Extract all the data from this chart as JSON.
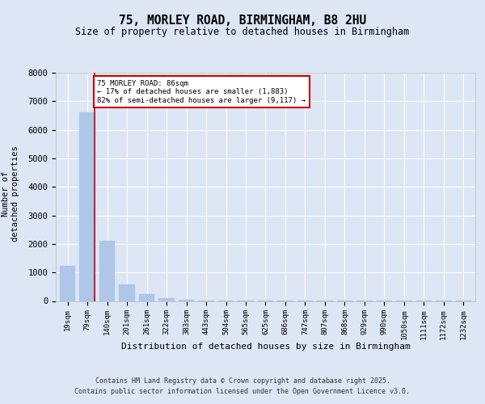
{
  "title": "75, MORLEY ROAD, BIRMINGHAM, B8 2HU",
  "subtitle": "Size of property relative to detached houses in Birmingham",
  "xlabel": "Distribution of detached houses by size in Birmingham",
  "ylabel": "Number of detached properties",
  "categories": [
    "19sqm",
    "79sqm",
    "140sqm",
    "201sqm",
    "261sqm",
    "322sqm",
    "383sqm",
    "443sqm",
    "504sqm",
    "565sqm",
    "625sqm",
    "686sqm",
    "747sqm",
    "807sqm",
    "868sqm",
    "929sqm",
    "990sqm",
    "1050sqm",
    "1111sqm",
    "1172sqm",
    "1232sqm"
  ],
  "values": [
    1220,
    6620,
    2120,
    570,
    230,
    95,
    45,
    25,
    15,
    10,
    8,
    6,
    5,
    4,
    3,
    3,
    2,
    2,
    1,
    1,
    1
  ],
  "bar_color": "#aec6e8",
  "bar_edge_color": "#aec6e8",
  "background_color": "#dce6f5",
  "plot_bg_color": "#dce6f5",
  "grid_color": "#ffffff",
  "vline_x": 1.35,
  "vline_color": "#cc0000",
  "annotation_text": "75 MORLEY ROAD: 86sqm\n← 17% of detached houses are smaller (1,883)\n82% of semi-detached houses are larger (9,117) →",
  "annotation_box_color": "#cc0000",
  "ylim": [
    0,
    8000
  ],
  "yticks": [
    0,
    1000,
    2000,
    3000,
    4000,
    5000,
    6000,
    7000,
    8000
  ],
  "footer_line1": "Contains HM Land Registry data © Crown copyright and database right 2025.",
  "footer_line2": "Contains public sector information licensed under the Open Government Licence v3.0."
}
